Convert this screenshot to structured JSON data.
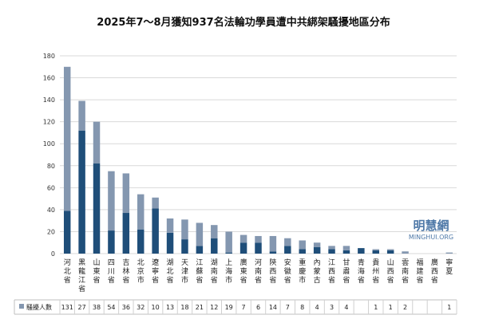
{
  "chart_data": {
    "type": "bar",
    "stacked": true,
    "title": "2025年7～8月獲知937名法輪功學員遭中共綁架騷擾地區分布",
    "ylim": [
      0,
      180
    ],
    "yticks": [
      0,
      20,
      40,
      60,
      80,
      100,
      120,
      140,
      160,
      180
    ],
    "grid": true,
    "categories": [
      "河北省",
      "黑龍江省",
      "山東省",
      "四川省",
      "吉林省",
      "北京市",
      "遼寧省",
      "湖北省",
      "天津市",
      "江蘇省",
      "湖南省",
      "上海市",
      "廣東省",
      "河南省",
      "陝西省",
      "安徽省",
      "重慶市",
      "內蒙古",
      "江西省",
      "甘肅省",
      "青海省",
      "貴州省",
      "山西省",
      "雲南省",
      "福建省",
      "廣西省",
      "寧夏"
    ],
    "series": [
      {
        "name": "",
        "color": "#1f4e79",
        "values": [
          39,
          112,
          82,
          21,
          37,
          22,
          41,
          19,
          13,
          7,
          14,
          1,
          10,
          10,
          2,
          7,
          4,
          6,
          4,
          3,
          5,
          3,
          3,
          0,
          0,
          0,
          0
        ]
      },
      {
        "name": "騷擾人數",
        "color": "#8497b0",
        "values": [
          131,
          27,
          38,
          54,
          36,
          32,
          10,
          13,
          18,
          21,
          12,
          19,
          7,
          6,
          14,
          7,
          8,
          4,
          3,
          4,
          0,
          1,
          1,
          2,
          0,
          0,
          1
        ]
      }
    ],
    "table_row_label": "騷擾人數",
    "table_values": [
      "131",
      "27",
      "38",
      "54",
      "36",
      "32",
      "10",
      "13",
      "18",
      "21",
      "12",
      "19",
      "7",
      "6",
      "14",
      "7",
      "8",
      "4",
      "3",
      "4",
      "",
      "1",
      "1",
      "2",
      "",
      "",
      "1"
    ]
  },
  "watermark": {
    "name": "明慧網",
    "url": "MINGHUI.ORG"
  }
}
